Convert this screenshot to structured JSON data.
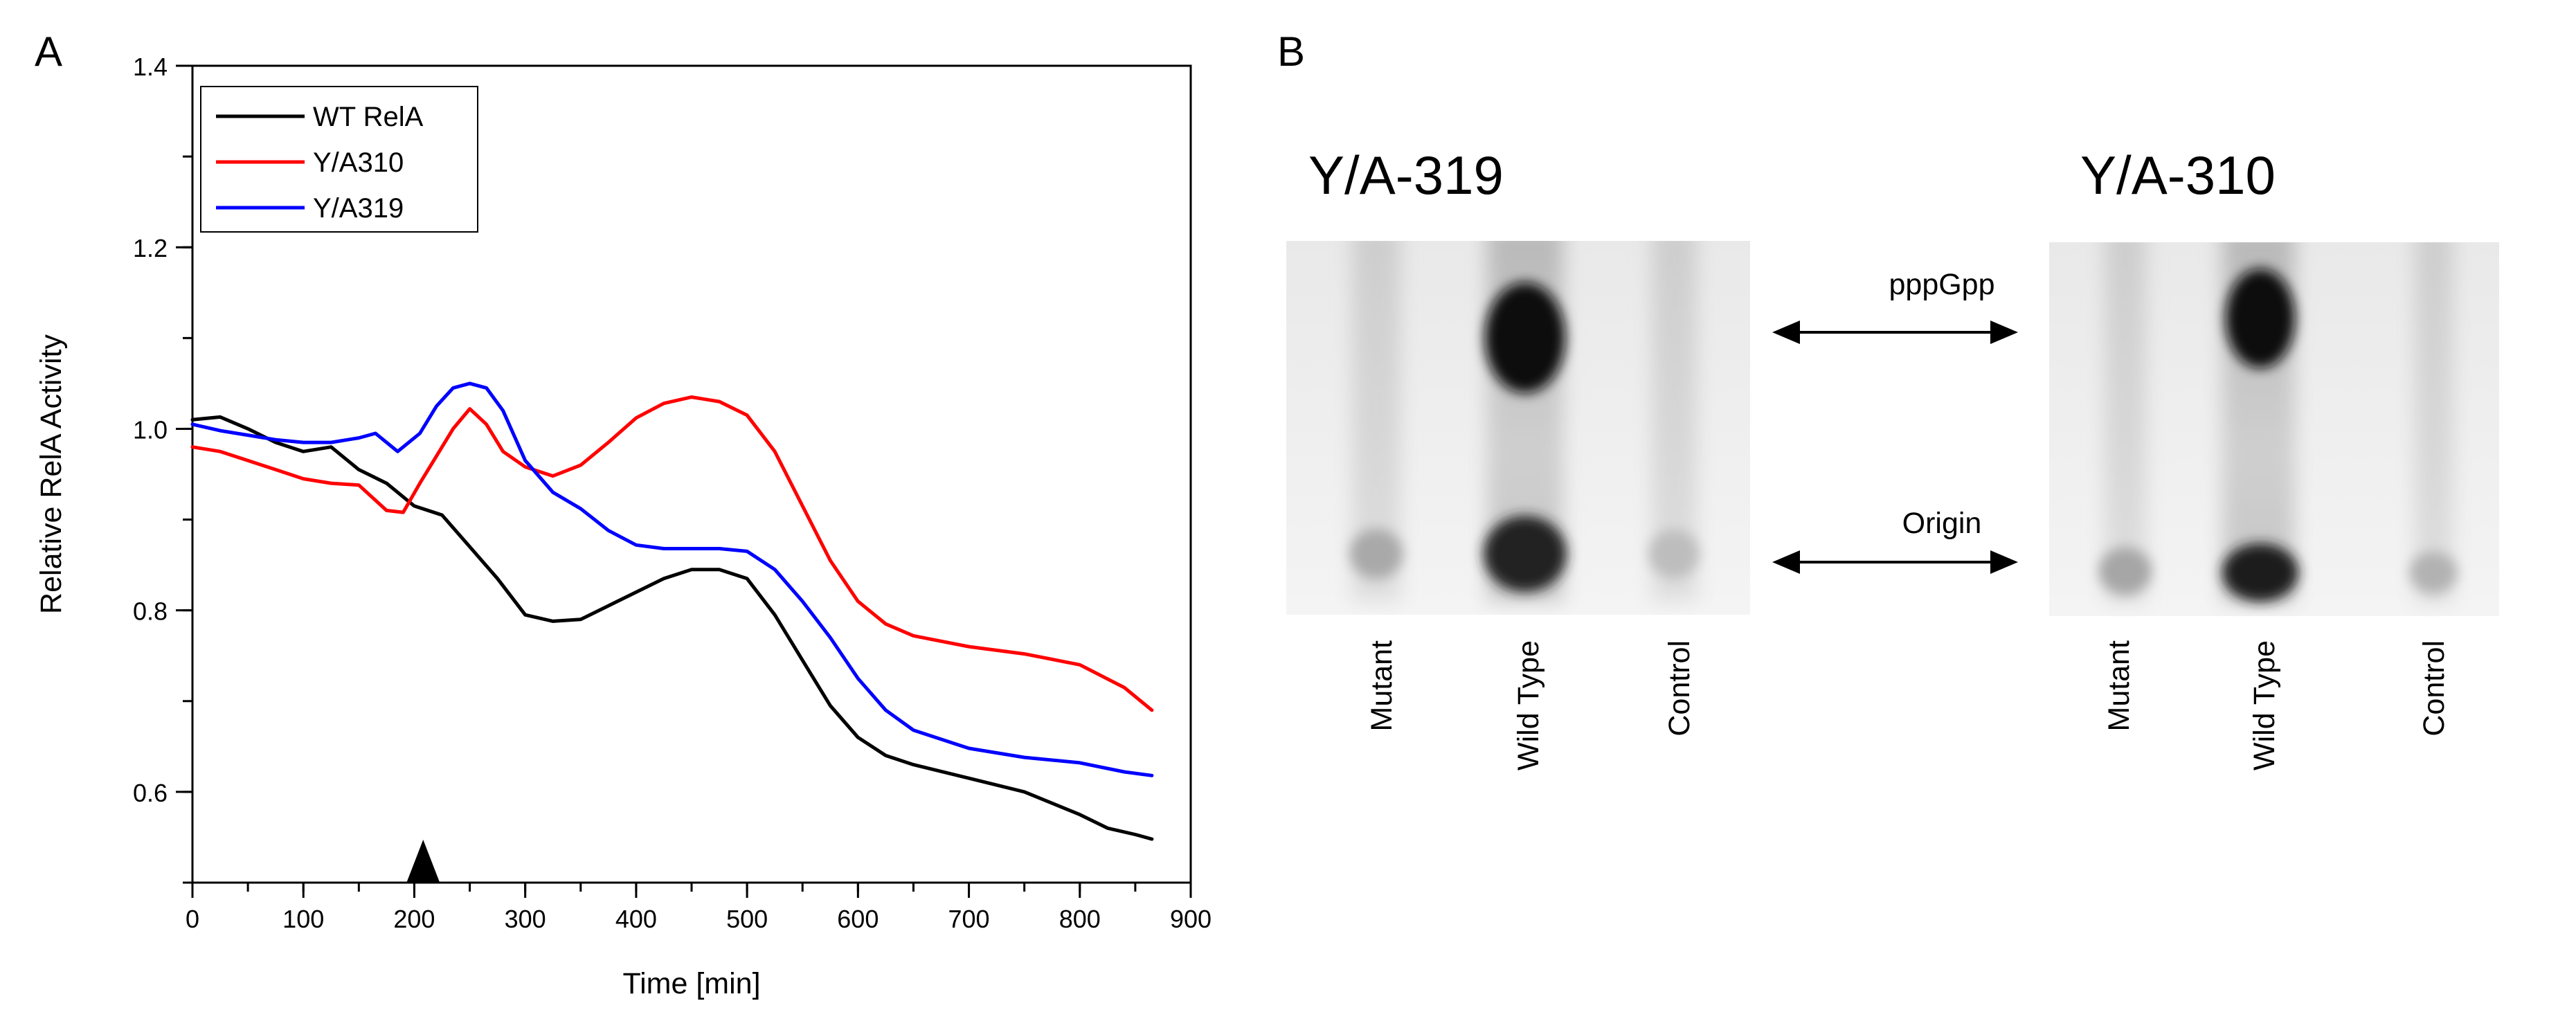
{
  "panel_a": {
    "label": "A"
  },
  "panel_b": {
    "label": "B",
    "gels": [
      {
        "title": "Y/A-319",
        "lanes": [
          "Mutant",
          "Wild Type",
          "Control"
        ]
      },
      {
        "title": "Y/A-310",
        "lanes": [
          "Mutant",
          "Wild Type",
          "Control"
        ]
      }
    ],
    "markers": [
      {
        "label": "pppGpp"
      },
      {
        "label": "Origin"
      }
    ]
  },
  "colors": {
    "wt": "#000000",
    "y310": "#ff0000",
    "y319": "#0000ff",
    "axis": "#000000"
  },
  "chart_data": {
    "type": "line",
    "title": "",
    "xlabel": "Time [min]",
    "ylabel": "Relative RelA  Activity",
    "xlim": [
      0,
      900
    ],
    "ylim": [
      0.5,
      1.4
    ],
    "xticks": [
      0,
      100,
      200,
      300,
      400,
      500,
      600,
      700,
      800,
      900
    ],
    "yticks": [
      0.6,
      0.8,
      1.0,
      1.2,
      1.4
    ],
    "ytick_labels": [
      "0.6",
      "0.8",
      "1.0",
      "1.2",
      "1.4"
    ],
    "legend_position": "top-left",
    "annotation": {
      "type": "arrowhead",
      "x": 208
    },
    "series": [
      {
        "name": "WT RelA",
        "color": "#000000",
        "x": [
          0,
          25,
          50,
          75,
          100,
          125,
          150,
          175,
          200,
          225,
          250,
          275,
          300,
          325,
          350,
          375,
          400,
          425,
          450,
          475,
          500,
          525,
          550,
          575,
          600,
          625,
          650,
          700,
          750,
          800,
          825,
          850,
          865
        ],
        "y": [
          1.01,
          1.013,
          1.0,
          0.985,
          0.975,
          0.98,
          0.955,
          0.94,
          0.915,
          0.905,
          0.87,
          0.835,
          0.795,
          0.788,
          0.79,
          0.805,
          0.82,
          0.835,
          0.845,
          0.845,
          0.835,
          0.795,
          0.745,
          0.695,
          0.66,
          0.64,
          0.63,
          0.615,
          0.6,
          0.575,
          0.56,
          0.553,
          0.548
        ]
      },
      {
        "name": "Y/A310",
        "color": "#ff0000",
        "x": [
          0,
          25,
          50,
          75,
          100,
          125,
          150,
          175,
          190,
          205,
          220,
          235,
          250,
          265,
          280,
          300,
          325,
          350,
          375,
          400,
          425,
          450,
          475,
          500,
          525,
          550,
          575,
          600,
          625,
          650,
          700,
          750,
          800,
          840,
          865
        ],
        "y": [
          0.98,
          0.975,
          0.965,
          0.955,
          0.945,
          0.94,
          0.938,
          0.91,
          0.908,
          0.94,
          0.97,
          1.0,
          1.022,
          1.005,
          0.975,
          0.958,
          0.948,
          0.96,
          0.985,
          1.012,
          1.028,
          1.035,
          1.03,
          1.015,
          0.975,
          0.915,
          0.855,
          0.81,
          0.785,
          0.772,
          0.76,
          0.752,
          0.74,
          0.715,
          0.69
        ]
      },
      {
        "name": "Y/A319",
        "color": "#0000ff",
        "x": [
          0,
          25,
          50,
          75,
          100,
          125,
          150,
          165,
          185,
          205,
          220,
          235,
          250,
          265,
          280,
          300,
          325,
          350,
          375,
          400,
          425,
          450,
          475,
          500,
          525,
          550,
          575,
          600,
          625,
          650,
          700,
          750,
          800,
          840,
          865
        ],
        "y": [
          1.005,
          0.998,
          0.993,
          0.988,
          0.985,
          0.985,
          0.99,
          0.995,
          0.975,
          0.995,
          1.025,
          1.045,
          1.05,
          1.045,
          1.02,
          0.965,
          0.93,
          0.912,
          0.888,
          0.872,
          0.868,
          0.868,
          0.868,
          0.865,
          0.845,
          0.81,
          0.77,
          0.725,
          0.69,
          0.668,
          0.648,
          0.638,
          0.632,
          0.622,
          0.618
        ]
      }
    ]
  }
}
